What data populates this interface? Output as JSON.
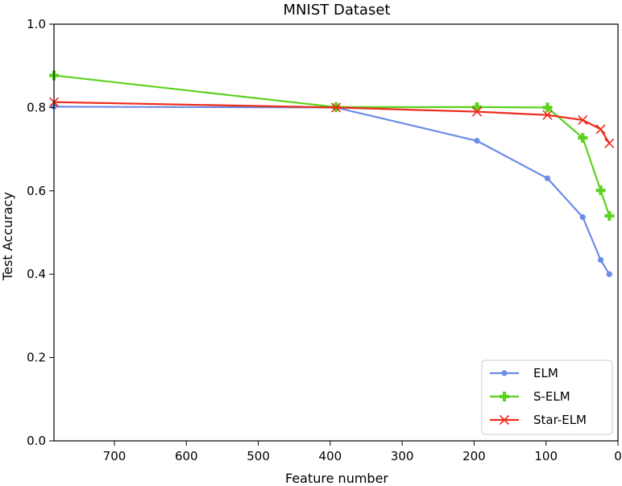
{
  "chart_data": {
    "type": "line",
    "title": "MNIST Dataset",
    "xlabel": "Feature number",
    "ylabel": "Test Accuracy",
    "xlim": [
      784,
      0
    ],
    "ylim": [
      0.0,
      1.0
    ],
    "x_inverted": true,
    "xticks": [
      700,
      600,
      500,
      400,
      300,
      200,
      100,
      0
    ],
    "xtick_labels": [
      "700",
      "600",
      "500",
      "400",
      "300",
      "200",
      "100",
      "0"
    ],
    "yticks": [
      0.0,
      0.2,
      0.4,
      0.6,
      0.8,
      1.0
    ],
    "ytick_labels": [
      "0.0",
      "0.2",
      "0.4",
      "0.6",
      "0.8",
      "1.0"
    ],
    "grid": false,
    "legend_position": "bottom-right",
    "series": [
      {
        "name": "ELM",
        "color": "#6b8ce8",
        "marker": "circle",
        "x": [
          784,
          392,
          196,
          98,
          49,
          24,
          12
        ],
        "y": [
          0.802,
          0.8,
          0.72,
          0.63,
          0.537,
          0.434,
          0.4
        ]
      },
      {
        "name": "S-ELM",
        "color": "#5bd21e",
        "marker": "plus",
        "x": [
          784,
          392,
          196,
          98,
          49,
          24,
          12
        ],
        "y": [
          0.877,
          0.801,
          0.801,
          0.8,
          0.727,
          0.601,
          0.54
        ]
      },
      {
        "name": "Star-ELM",
        "color": "#ee2a1a",
        "marker": "x",
        "x": [
          784,
          392,
          196,
          98,
          49,
          24,
          12
        ],
        "y": [
          0.813,
          0.8,
          0.79,
          0.782,
          0.77,
          0.748,
          0.714
        ]
      }
    ]
  }
}
